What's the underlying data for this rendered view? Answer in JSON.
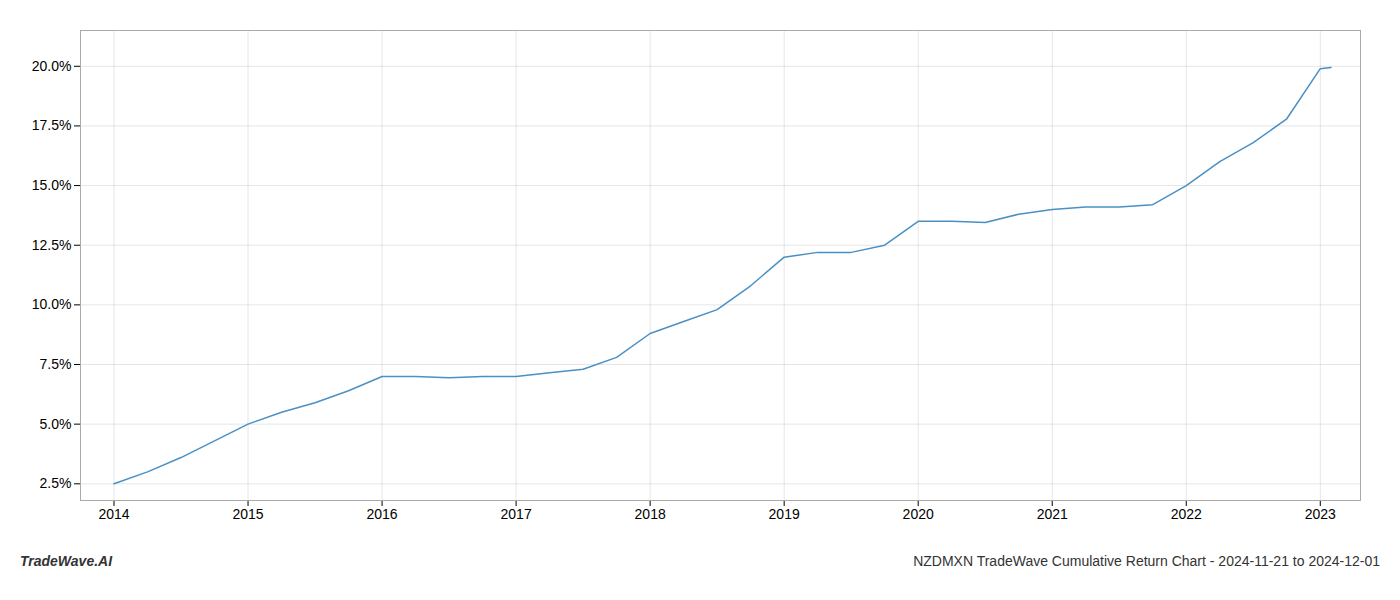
{
  "chart_data": {
    "type": "line",
    "title": "NZDMXN TradeWave Cumulative Return Chart - 2024-11-21 to 2024-12-01",
    "annotations": [
      "TradeWave.AI"
    ],
    "x": [
      2014.0,
      2014.25,
      2014.5,
      2014.75,
      2015.0,
      2015.25,
      2015.5,
      2015.75,
      2016.0,
      2016.25,
      2016.5,
      2016.75,
      2017.0,
      2017.25,
      2017.5,
      2017.75,
      2018.0,
      2018.25,
      2018.5,
      2018.75,
      2019.0,
      2019.25,
      2019.5,
      2019.75,
      2020.0,
      2020.25,
      2020.5,
      2020.75,
      2021.0,
      2021.25,
      2021.5,
      2021.75,
      2022.0,
      2022.25,
      2022.5,
      2022.75,
      2023.0,
      2023.08
    ],
    "values": [
      2.5,
      3.0,
      3.6,
      4.3,
      5.0,
      5.5,
      5.9,
      6.4,
      7.0,
      7.0,
      6.95,
      7.0,
      7.0,
      7.15,
      7.3,
      7.8,
      8.8,
      9.3,
      9.8,
      10.8,
      12.0,
      12.2,
      12.2,
      12.5,
      13.5,
      13.5,
      13.45,
      13.8,
      14.0,
      14.1,
      14.1,
      14.2,
      15.0,
      16.0,
      16.8,
      17.8,
      19.9,
      19.95
    ],
    "color": "#4a90c4",
    "xlim": [
      2013.75,
      2023.3
    ],
    "ylim": [
      1.8,
      21.5
    ],
    "xticks": [
      2014,
      2015,
      2016,
      2017,
      2018,
      2019,
      2020,
      2021,
      2022,
      2023
    ],
    "yticks": [
      {
        "value": 2.5,
        "label": "2.5%"
      },
      {
        "value": 5.0,
        "label": "5.0%"
      },
      {
        "value": 7.5,
        "label": "7.5%"
      },
      {
        "value": 10.0,
        "label": "10.0%"
      },
      {
        "value": 12.5,
        "label": "12.5%"
      },
      {
        "value": 15.0,
        "label": "15.0%"
      },
      {
        "value": 17.5,
        "label": "17.5%"
      },
      {
        "value": 20.0,
        "label": "20.0%"
      }
    ],
    "grid": true
  }
}
